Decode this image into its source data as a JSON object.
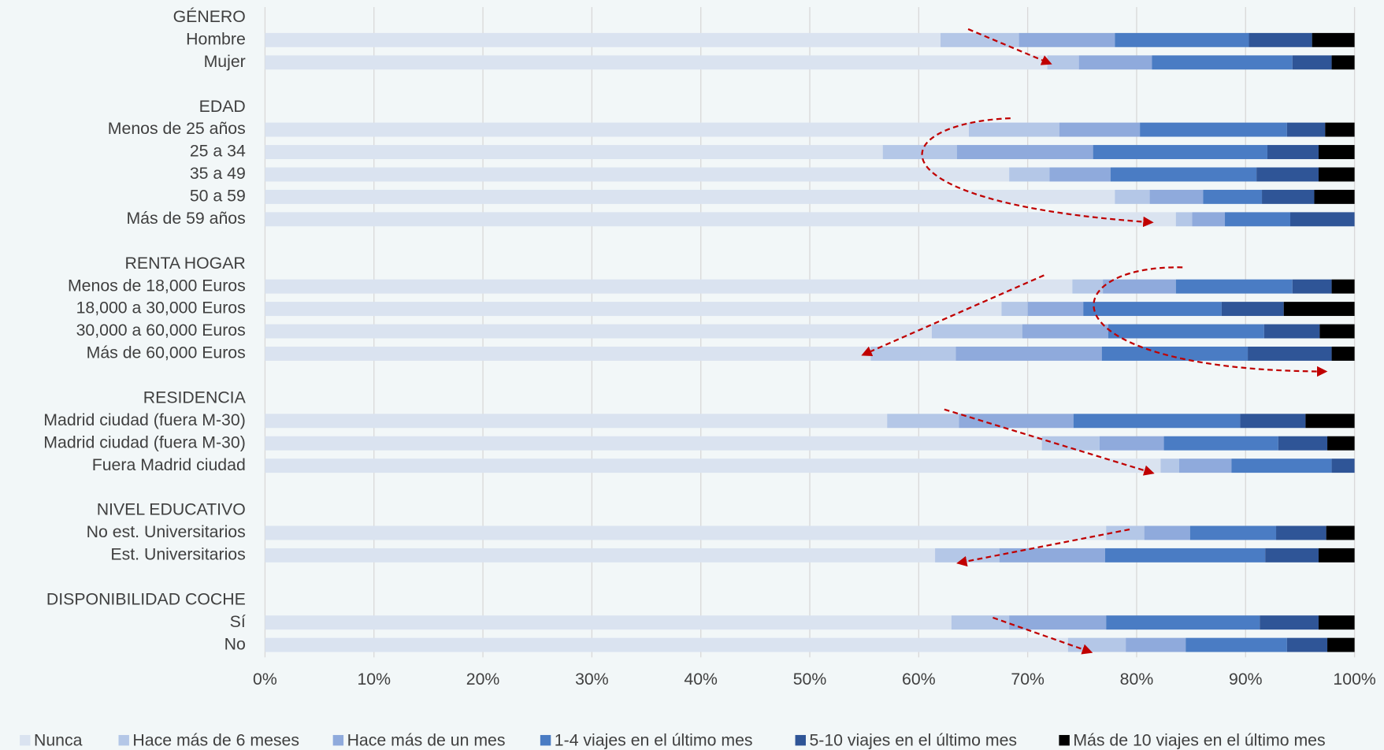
{
  "chart_data": {
    "type": "stacked-bar-horizontal",
    "categories": [
      "GÉNERO",
      "Hombre",
      "Mujer",
      null,
      "EDAD",
      "Menos de 25 años",
      "25 a 34",
      "35 a 49",
      "50 a 59",
      "Más de 59 años",
      null,
      "RENTA HOGAR",
      "Menos de 18,000 Euros",
      "18,000 a 30,000 Euros",
      "30,000 a 60,000 Euros",
      "Más de 60,000 Euros",
      null,
      "RESIDENCIA",
      "Madrid ciudad (fuera M-30)",
      "Madrid ciudad (fuera M-30)",
      "Fuera Madrid ciudad",
      null,
      "NIVEL EDUCATIVO",
      "No est. Universitarios",
      "Est. Universitarios",
      null,
      "DISPONIBILIDAD COCHE",
      "Sí",
      "No"
    ],
    "series": [
      {
        "name": "Nunca",
        "color": "#dae3f0",
        "values": [
          null,
          62.0,
          71.8,
          null,
          null,
          64.6,
          56.7,
          68.3,
          78.0,
          83.6,
          null,
          null,
          74.1,
          67.6,
          61.2,
          55.6,
          null,
          null,
          57.1,
          71.3,
          82.2,
          null,
          null,
          77.2,
          61.5,
          null,
          null,
          63.0,
          73.7
        ]
      },
      {
        "name": "Hace más de 6 meses",
        "color": "#b4c7e7",
        "values": [
          null,
          7.2,
          2.9,
          null,
          null,
          8.3,
          6.8,
          3.7,
          3.2,
          1.5,
          null,
          null,
          2.8,
          2.4,
          8.3,
          7.8,
          null,
          null,
          6.6,
          5.3,
          1.7,
          null,
          null,
          3.5,
          5.9,
          null,
          null,
          5.3,
          5.3
        ]
      },
      {
        "name": "Hace más de un mes",
        "color": "#8faadc",
        "values": [
          null,
          8.8,
          6.7,
          null,
          null,
          7.4,
          12.5,
          5.6,
          4.9,
          3.0,
          null,
          null,
          6.7,
          5.1,
          7.9,
          13.4,
          null,
          null,
          10.5,
          5.9,
          4.8,
          null,
          null,
          4.2,
          9.7,
          null,
          null,
          8.9,
          5.5
        ]
      },
      {
        "name": "1-4 viajes en el último mes",
        "color": "#4a7cc4",
        "values": [
          null,
          12.3,
          12.9,
          null,
          null,
          13.5,
          16.0,
          13.4,
          5.4,
          6.0,
          null,
          null,
          10.7,
          12.7,
          14.3,
          13.4,
          null,
          null,
          15.3,
          10.5,
          9.2,
          null,
          null,
          7.9,
          14.7,
          null,
          null,
          14.1,
          9.3
        ]
      },
      {
        "name": "5-10 viajes en el último mes",
        "color": "#2f5597",
        "values": [
          null,
          5.8,
          3.6,
          null,
          null,
          3.5,
          4.7,
          5.7,
          4.8,
          5.9,
          null,
          null,
          3.6,
          5.7,
          5.1,
          7.7,
          null,
          null,
          6.0,
          4.5,
          2.1,
          null,
          null,
          4.6,
          4.9,
          null,
          null,
          5.4,
          3.7
        ]
      },
      {
        "name": "Más de 10 viajes en el último mes",
        "color": "#000000",
        "values": [
          null,
          3.9,
          2.1,
          null,
          null,
          2.7,
          3.3,
          3.3,
          3.7,
          0,
          null,
          null,
          2.1,
          6.5,
          3.2,
          2.1,
          null,
          null,
          4.5,
          2.5,
          0,
          null,
          null,
          2.6,
          3.3,
          null,
          null,
          3.3,
          2.5
        ]
      }
    ],
    "xlim": [
      0,
      100
    ],
    "xticks": [
      {
        "value": 0,
        "label": "0%"
      },
      {
        "value": 10,
        "label": "10%"
      },
      {
        "value": 20,
        "label": "20%"
      },
      {
        "value": 30,
        "label": "30%"
      },
      {
        "value": 40,
        "label": "40%"
      },
      {
        "value": 50,
        "label": "50%"
      },
      {
        "value": 60,
        "label": "60%"
      },
      {
        "value": 70,
        "label": "70%"
      },
      {
        "value": 80,
        "label": "80%"
      },
      {
        "value": 90,
        "label": "90%"
      },
      {
        "value": 100,
        "label": "100%"
      }
    ],
    "grid": true,
    "legend": "bottom"
  }
}
